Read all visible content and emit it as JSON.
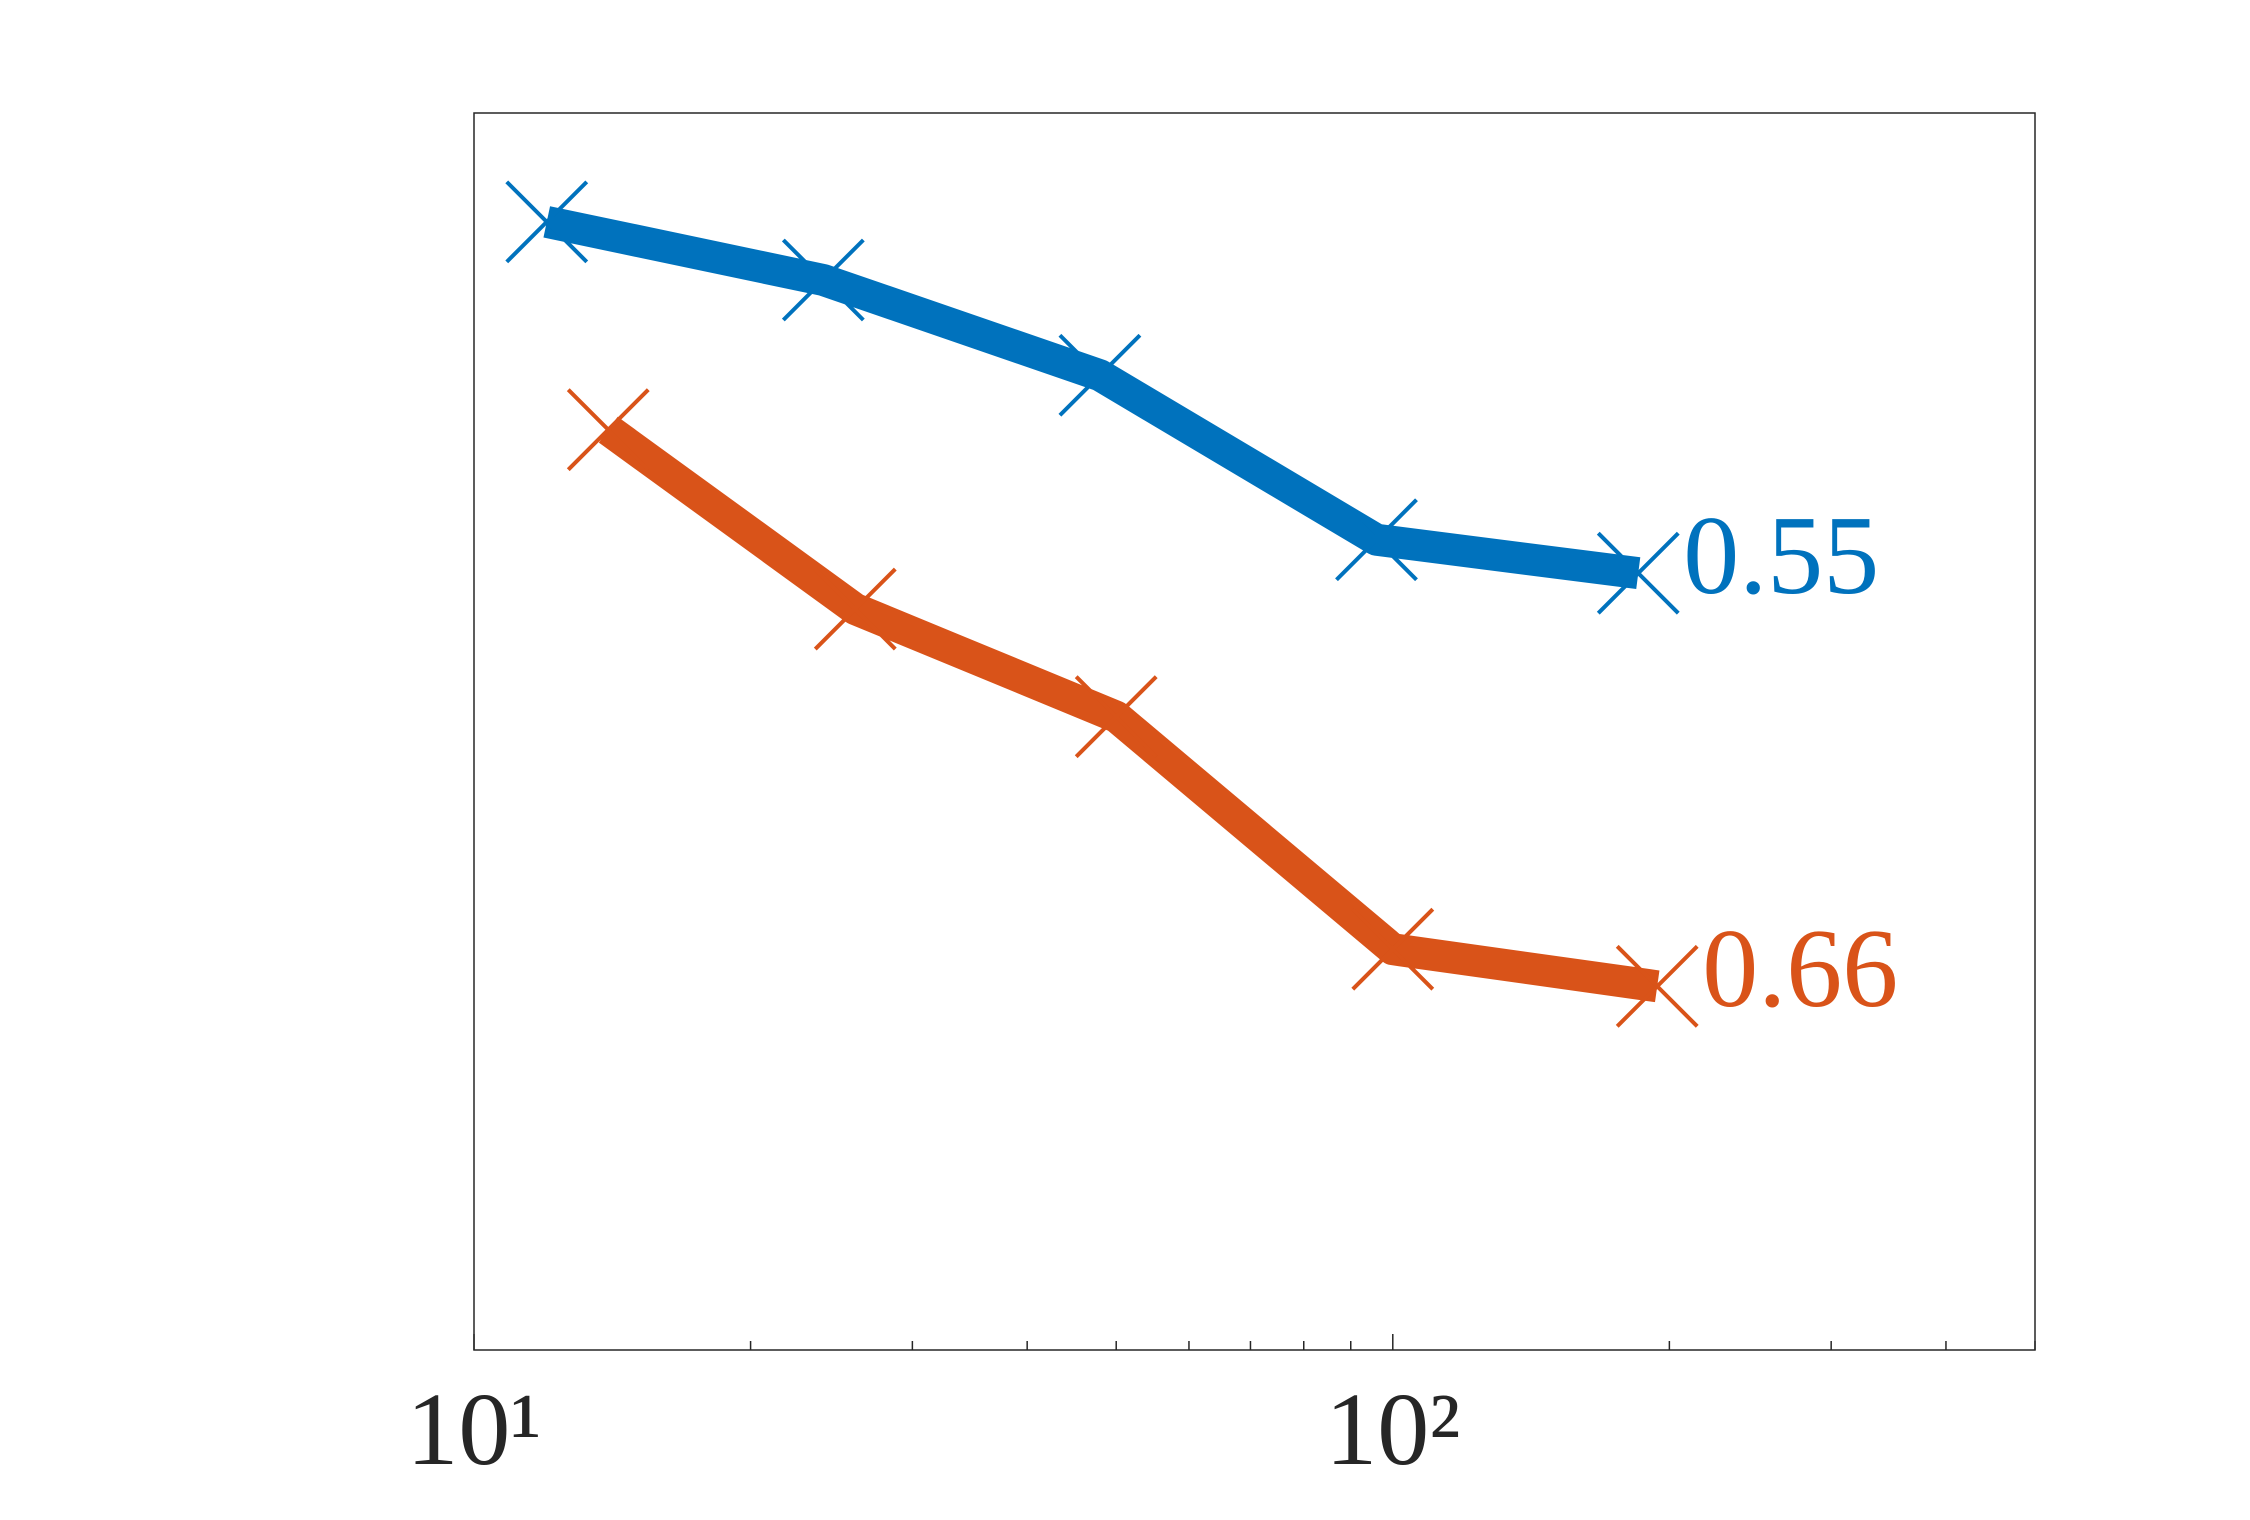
{
  "chart_data": {
    "type": "line",
    "xscale": "log",
    "xlim": [
      10,
      500
    ],
    "ylim": [
      0,
      1
    ],
    "xticks": [
      {
        "value": 10,
        "label": "10¹"
      },
      {
        "value": 100,
        "label": "10²"
      }
    ],
    "xminorticks": [
      20,
      30,
      40,
      50,
      60,
      70,
      80,
      90,
      200,
      300,
      400,
      500
    ],
    "series": [
      {
        "color": "#0072bd",
        "x": [
          12,
          24,
          48,
          96,
          185
        ],
        "values": [
          0.912,
          0.865,
          0.788,
          0.655,
          0.628
        ],
        "slope_label": "0.55"
      },
      {
        "color": "#d95319",
        "x": [
          14,
          26,
          50,
          100,
          194
        ],
        "values": [
          0.744,
          0.599,
          0.512,
          0.324,
          0.294
        ],
        "slope_label": "0.66"
      }
    ]
  }
}
